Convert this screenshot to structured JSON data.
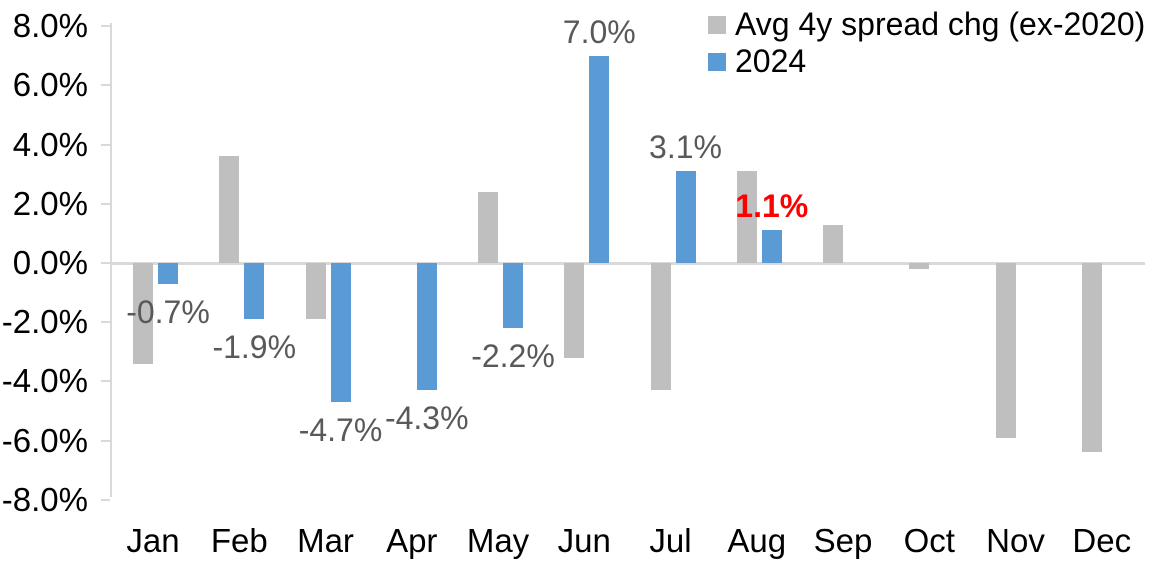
{
  "chart_data": {
    "type": "bar",
    "title": "",
    "xlabel": "",
    "ylabel": "",
    "grid": false,
    "categories": [
      "Jan",
      "Feb",
      "Mar",
      "Apr",
      "May",
      "Jun",
      "Jul",
      "Aug",
      "Sep",
      "Oct",
      "Nov",
      "Dec"
    ],
    "series": [
      {
        "name": "Avg 4y spread chg (ex-2020)",
        "color": "#bfbfbf",
        "values": [
          -3.4,
          3.6,
          -1.9,
          0.0,
          2.4,
          -3.2,
          -4.3,
          3.1,
          1.3,
          -0.2,
          -5.9,
          -6.4
        ]
      },
      {
        "name": "2024",
        "color": "#5b9bd5",
        "values": [
          -0.7,
          -1.9,
          -4.7,
          -4.3,
          -2.2,
          7.0,
          3.1,
          1.1,
          null,
          null,
          null,
          null
        ]
      }
    ],
    "data_labels": [
      {
        "month": "Jan",
        "text": "-0.7%",
        "color": "#595959",
        "bold": false
      },
      {
        "month": "Feb",
        "text": "-1.9%",
        "color": "#595959",
        "bold": false
      },
      {
        "month": "Mar",
        "text": "-4.7%",
        "color": "#595959",
        "bold": false
      },
      {
        "month": "Apr",
        "text": "-4.3%",
        "color": "#595959",
        "bold": false
      },
      {
        "month": "May",
        "text": "-2.2%",
        "color": "#595959",
        "bold": false
      },
      {
        "month": "Jun",
        "text": "7.0%",
        "color": "#595959",
        "bold": false
      },
      {
        "month": "Jul",
        "text": "3.1%",
        "color": "#595959",
        "bold": false
      },
      {
        "month": "Aug",
        "text": "1.1%",
        "color": "#ff0000",
        "bold": true
      }
    ],
    "y_axis": {
      "ticks": [
        "8.0%",
        "6.0%",
        "4.0%",
        "2.0%",
        "0.0%",
        "-2.0%",
        "-4.0%",
        "-6.0%",
        "-8.0%"
      ],
      "tick_values": [
        8,
        6,
        4,
        2,
        0,
        -2,
        -4,
        -6,
        -8
      ],
      "ylim": [
        -8,
        8
      ]
    },
    "legend": {
      "position": "top-right",
      "entries": [
        "Avg 4y spread chg (ex-2020)",
        "2024"
      ]
    },
    "colors": {
      "axis_line": "#d9d9d9",
      "tick_text": "#000000",
      "label_default": "#595959",
      "label_highlight": "#ff0000"
    }
  }
}
